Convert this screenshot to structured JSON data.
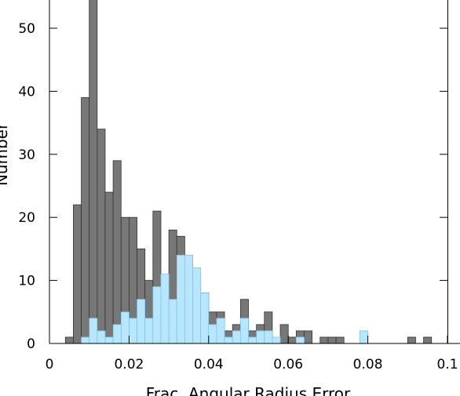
{
  "chart_data": {
    "type": "bar",
    "xlabel": "Frac. Angular Radius Error",
    "ylabel": "Number",
    "xlim": [
      0,
      0.1
    ],
    "ylim": [
      0,
      55
    ],
    "x_ticks": [
      0,
      0.02,
      0.04,
      0.06,
      0.08,
      0.1
    ],
    "x_tick_labels": [
      "0",
      "0.02",
      "0.04",
      "0.06",
      "0.08",
      "0.1"
    ],
    "y_ticks": [
      0,
      10,
      20,
      30,
      40,
      50
    ],
    "y_tick_labels": [
      "0",
      "10",
      "20",
      "30",
      "40",
      "50"
    ],
    "bin_width": 0.002,
    "bin_starts": [
      0.002,
      0.004,
      0.006,
      0.008,
      0.01,
      0.012,
      0.014,
      0.016,
      0.018,
      0.02,
      0.022,
      0.024,
      0.026,
      0.028,
      0.03,
      0.032,
      0.034,
      0.036,
      0.038,
      0.04,
      0.042,
      0.044,
      0.046,
      0.048,
      0.05,
      0.052,
      0.054,
      0.056,
      0.058,
      0.06,
      0.062,
      0.064,
      0.066,
      0.068,
      0.07,
      0.072,
      0.074,
      0.076,
      0.078,
      0.08,
      0.082,
      0.084,
      0.086,
      0.088,
      0.09,
      0.092,
      0.094,
      0.096,
      0.098
    ],
    "grid": false,
    "series": [
      {
        "color": "#777777",
        "values": [
          0,
          1,
          22,
          39,
          55,
          34,
          24,
          29,
          20,
          20,
          15,
          10,
          21,
          9,
          18,
          17,
          14,
          11,
          8,
          5,
          5,
          2,
          3,
          7,
          2,
          3,
          5,
          0,
          3,
          1,
          2,
          2,
          0,
          1,
          1,
          1,
          0,
          0,
          0,
          0,
          0,
          0,
          0,
          0,
          1,
          0,
          1,
          0,
          0
        ]
      },
      {
        "color": "#b8e6ff",
        "values": [
          0,
          0,
          0,
          1,
          4,
          2,
          1,
          3,
          5,
          4,
          7,
          4,
          9,
          11,
          7,
          14,
          14,
          12,
          8,
          3,
          4,
          1,
          2,
          4,
          1,
          2,
          2,
          1,
          0,
          0,
          1,
          0,
          0,
          0,
          0,
          0,
          0,
          0,
          2,
          0,
          0,
          0,
          0,
          0,
          0,
          0,
          0,
          0,
          0
        ]
      }
    ]
  }
}
